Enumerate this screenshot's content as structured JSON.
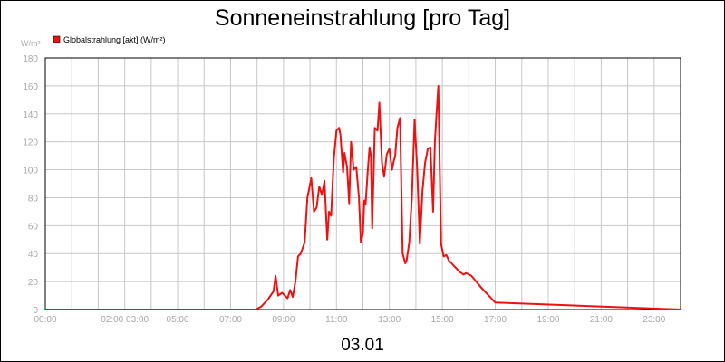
{
  "chart_data": {
    "type": "line",
    "title": "Sonneneinstrahlung [pro Tag]",
    "date_label": "03.01",
    "y_unit": "W/m²",
    "ylim": [
      0,
      180
    ],
    "y_ticks": [
      "0",
      "20",
      "40",
      "60",
      "80",
      "100",
      "120",
      "140",
      "160",
      "180"
    ],
    "x_range_hours": [
      0,
      24
    ],
    "x_ticks": [
      {
        "hour": 0,
        "label": "00:00"
      },
      {
        "hour": 3,
        "label": "02:00 03:00"
      },
      {
        "hour": 5,
        "label": "05:00"
      },
      {
        "hour": 7,
        "label": "07:00"
      },
      {
        "hour": 9,
        "label": "09:00"
      },
      {
        "hour": 11,
        "label": "11:00"
      },
      {
        "hour": 13,
        "label": "13:00"
      },
      {
        "hour": 15,
        "label": "15:00"
      },
      {
        "hour": 17,
        "label": "17:00"
      },
      {
        "hour": 19,
        "label": "19:00"
      },
      {
        "hour": 21,
        "label": "21:00"
      },
      {
        "hour": 23,
        "label": "23:00"
      }
    ],
    "grid": true,
    "legend_position": "top-left",
    "series": [
      {
        "name": "Globalstrahlung [akt] (W/m²)",
        "color": "#ee1111",
        "x_hours": [
          0,
          7.95,
          8.15,
          8.4,
          8.55,
          8.62,
          8.7,
          8.8,
          8.95,
          9.05,
          9.15,
          9.25,
          9.35,
          9.45,
          9.55,
          9.65,
          9.8,
          9.9,
          10.05,
          10.15,
          10.25,
          10.35,
          10.45,
          10.55,
          10.65,
          10.72,
          10.8,
          10.9,
          11.0,
          11.1,
          11.15,
          11.25,
          11.3,
          11.4,
          11.48,
          11.55,
          11.65,
          11.75,
          11.85,
          11.92,
          12.0,
          12.05,
          12.1,
          12.18,
          12.25,
          12.3,
          12.35,
          12.45,
          12.55,
          12.62,
          12.72,
          12.8,
          12.9,
          13.0,
          13.1,
          13.15,
          13.22,
          13.3,
          13.4,
          13.5,
          13.6,
          13.65,
          13.75,
          13.85,
          13.95,
          14.05,
          14.15,
          14.25,
          14.35,
          14.45,
          14.55,
          14.65,
          14.72,
          14.78,
          14.85,
          14.95,
          15.05,
          15.15,
          15.25,
          15.35,
          15.5,
          15.65,
          15.8,
          15.9,
          16.1,
          16.5,
          16.8,
          17.0,
          24
        ],
        "values": [
          0,
          0,
          2,
          7,
          11,
          13,
          24,
          10,
          12,
          10,
          8,
          14,
          9,
          20,
          38,
          40,
          48,
          80,
          94,
          70,
          73,
          88,
          82,
          92,
          50,
          70,
          67,
          108,
          128,
          130,
          125,
          98,
          112,
          102,
          76,
          120,
          100,
          102,
          80,
          48,
          55,
          78,
          75,
          99,
          116,
          110,
          58,
          130,
          128,
          148,
          105,
          95,
          111,
          115,
          100,
          105,
          110,
          130,
          137,
          40,
          33,
          35,
          48,
          80,
          136,
          100,
          47,
          85,
          105,
          115,
          116,
          70,
          120,
          140,
          160,
          47,
          38,
          39,
          35,
          33,
          30,
          27,
          25,
          26,
          24,
          15,
          9,
          5,
          0
        ]
      }
    ]
  }
}
